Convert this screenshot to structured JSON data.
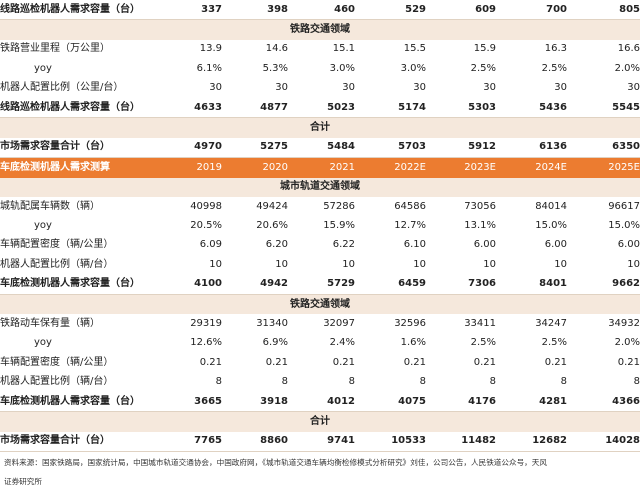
{
  "header": {
    "logo_text": ""
  },
  "rows": [
    {
      "type": "data",
      "style": "bold sep",
      "label": "线路巡检机器人需求容量（台）",
      "values": [
        "337",
        "398",
        "460",
        "529",
        "609",
        "700",
        "805"
      ]
    },
    {
      "type": "band",
      "label": "铁路交通领域"
    },
    {
      "type": "data",
      "style": "",
      "label": "铁路营业里程（万公里）",
      "values": [
        "13.9",
        "14.6",
        "15.1",
        "15.5",
        "15.9",
        "16.3",
        "16.6"
      ]
    },
    {
      "type": "data",
      "style": "indent",
      "label": "yoy",
      "values": [
        "6.1%",
        "5.3%",
        "3.0%",
        "3.0%",
        "2.5%",
        "2.5%",
        "2.0%"
      ]
    },
    {
      "type": "data",
      "style": "",
      "label": "机器人配置比例（公里/台）",
      "values": [
        "30",
        "30",
        "30",
        "30",
        "30",
        "30",
        "30"
      ]
    },
    {
      "type": "data",
      "style": "bold sep",
      "label": "线路巡检机器人需求容量（台）",
      "values": [
        "4633",
        "4877",
        "5023",
        "5174",
        "5303",
        "5436",
        "5545"
      ]
    },
    {
      "type": "band",
      "label": "合计"
    },
    {
      "type": "data",
      "style": "bold sep",
      "label": "市场需求容量合计（台）",
      "values": [
        "4970",
        "5275",
        "5484",
        "5703",
        "5912",
        "6136",
        "6350"
      ]
    },
    {
      "type": "orange",
      "label": "车底检测机器人需求测算",
      "values": [
        "2019",
        "2020",
        "2021",
        "2022E",
        "2023E",
        "2024E",
        "2025E"
      ]
    },
    {
      "type": "band",
      "label": "城市轨道交通领域"
    },
    {
      "type": "data",
      "style": "",
      "label": "城轨配属车辆数（辆）",
      "values": [
        "40998",
        "49424",
        "57286",
        "64586",
        "73056",
        "84014",
        "96617"
      ]
    },
    {
      "type": "data",
      "style": "indent",
      "label": "yoy",
      "values": [
        "20.5%",
        "20.6%",
        "15.9%",
        "12.7%",
        "13.1%",
        "15.0%",
        "15.0%"
      ]
    },
    {
      "type": "data",
      "style": "",
      "label": "车辆配置密度（辆/公里）",
      "values": [
        "6.09",
        "6.20",
        "6.22",
        "6.10",
        "6.00",
        "6.00",
        "6.00"
      ]
    },
    {
      "type": "data",
      "style": "",
      "label": "机器人配置比例（辆/台）",
      "values": [
        "10",
        "10",
        "10",
        "10",
        "10",
        "10",
        "10"
      ]
    },
    {
      "type": "data",
      "style": "bold sep",
      "label": "车底检测机器人需求容量（台）",
      "values": [
        "4100",
        "4942",
        "5729",
        "6459",
        "7306",
        "8401",
        "9662"
      ]
    },
    {
      "type": "band",
      "label": "铁路交通领域"
    },
    {
      "type": "data",
      "style": "",
      "label": "铁路动车保有量（辆）",
      "values": [
        "29319",
        "31340",
        "32097",
        "32596",
        "33411",
        "34247",
        "34932"
      ]
    },
    {
      "type": "data",
      "style": "indent",
      "label": "yoy",
      "values": [
        "12.6%",
        "6.9%",
        "2.4%",
        "1.6%",
        "2.5%",
        "2.5%",
        "2.0%"
      ]
    },
    {
      "type": "data",
      "style": "",
      "label": "车辆配置密度（辆/公里）",
      "values": [
        "0.21",
        "0.21",
        "0.21",
        "0.21",
        "0.21",
        "0.21",
        "0.21"
      ]
    },
    {
      "type": "data",
      "style": "",
      "label": "机器人配置比例（辆/台）",
      "values": [
        "8",
        "8",
        "8",
        "8",
        "8",
        "8",
        "8"
      ]
    },
    {
      "type": "data",
      "style": "bold sep",
      "label": "车底检测机器人需求容量（台）",
      "values": [
        "3665",
        "3918",
        "4012",
        "4075",
        "4176",
        "4281",
        "4366"
      ]
    },
    {
      "type": "band",
      "label": "合计"
    },
    {
      "type": "data",
      "style": "bold sep",
      "label": "市场需求容量合计（台）",
      "values": [
        "7765",
        "8860",
        "9741",
        "10533",
        "11482",
        "12682",
        "14028"
      ]
    }
  ],
  "footer": {
    "line1": "资料来源：国家铁路局，国家统计局，中国城市轨道交通协会，中国政府网，《城市轨道交通车辆均衡检修模式分析研究》刘佳，公司公告，人民铁道公众号，天风",
    "line2": "证券研究所"
  },
  "colors": {
    "orange": "#ec7c30",
    "band": "#f5e8dc",
    "separator": "#e0d2c2"
  }
}
